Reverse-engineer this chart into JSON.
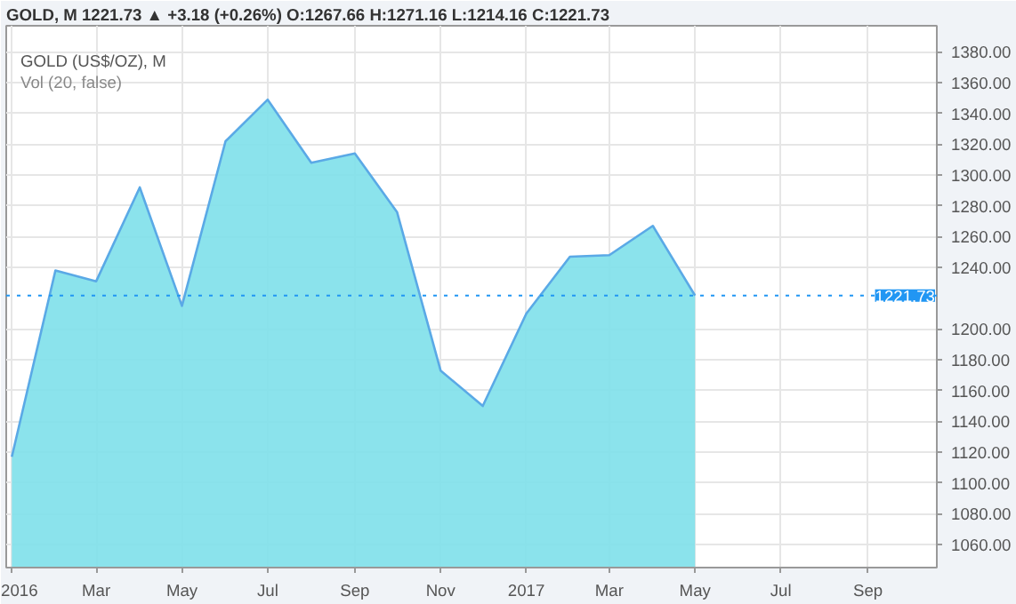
{
  "chart_data": {
    "type": "area",
    "title": "GOLD (US$/OZ), M",
    "subtitle": "Vol (20, false)",
    "annotations": [
      "GOLD, M 1221.73 ▲ +3.18 (+0.26%) O:1267.66 H:1271.16 L:1214.16 C:1221.73"
    ],
    "x": [
      "2016-01",
      "2016-02",
      "2016-03",
      "2016-04",
      "2016-05",
      "2016-06",
      "2016-07",
      "2016-08",
      "2016-09",
      "2016-10",
      "2016-11",
      "2016-12",
      "2017-01",
      "2017-02",
      "2017-03",
      "2017-04",
      "2017-05"
    ],
    "series": [
      {
        "color": "#5aa9e6",
        "values": [
          1117,
          1238,
          1231,
          1292,
          1215,
          1322,
          1349,
          1308,
          1314,
          1276,
          1173,
          1150,
          1210,
          1247,
          1248,
          1267,
          1221.73
        ]
      }
    ],
    "xlim": [
      "2015-12-28",
      "2017-10-20"
    ],
    "xticks": [
      {
        "value": "2016-01",
        "label": "2016"
      },
      {
        "value": "2016-03",
        "label": "Mar"
      },
      {
        "value": "2016-05",
        "label": "May"
      },
      {
        "value": "2016-07",
        "label": "Jul"
      },
      {
        "value": "2016-09",
        "label": "Sep"
      },
      {
        "value": "2016-11",
        "label": "Nov"
      },
      {
        "value": "2017-01",
        "label": "2017"
      },
      {
        "value": "2017-03",
        "label": "Mar"
      },
      {
        "value": "2017-05",
        "label": "May"
      },
      {
        "value": "2017-07",
        "label": "Jul"
      },
      {
        "value": "2017-09",
        "label": "Sep"
      }
    ],
    "ylim": [
      1045,
      1397
    ],
    "yticks": [
      {
        "value": 1060,
        "label": "1060.00"
      },
      {
        "value": 1080,
        "label": "1080.00"
      },
      {
        "value": 1100,
        "label": "1100.00"
      },
      {
        "value": 1120,
        "label": "1120.00"
      },
      {
        "value": 1140,
        "label": "1140.00"
      },
      {
        "value": 1160,
        "label": "1160.00"
      },
      {
        "value": 1180,
        "label": "1180.00"
      },
      {
        "value": 1200,
        "label": "1200.00"
      },
      {
        "value": 1240,
        "label": "1240.00"
      },
      {
        "value": 1260,
        "label": "1260.00"
      },
      {
        "value": 1280,
        "label": "1280.00"
      },
      {
        "value": 1300,
        "label": "1300.00"
      },
      {
        "value": 1320,
        "label": "1320.00"
      },
      {
        "value": 1340,
        "label": "1340.00"
      },
      {
        "value": 1360,
        "label": "1360.00"
      },
      {
        "value": 1380,
        "label": "1380.00"
      }
    ],
    "ref_lines": [
      {
        "axis": "y",
        "value": 1221.73,
        "label": "1221.73",
        "color": "#2196f3",
        "line_style": "dotted"
      }
    ],
    "grid": true
  }
}
